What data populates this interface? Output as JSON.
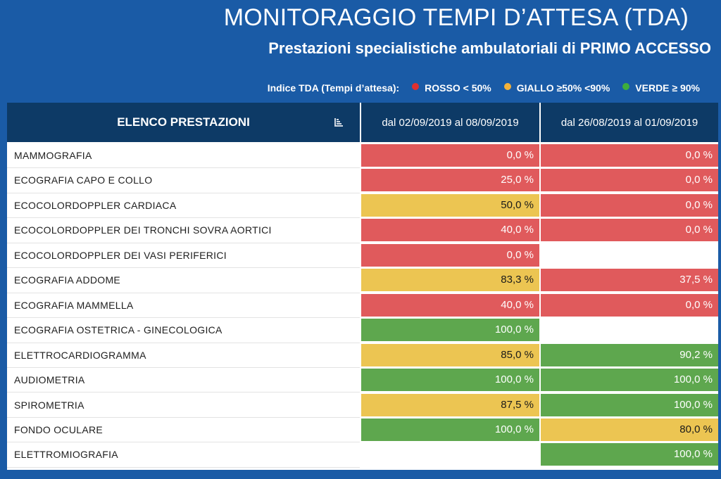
{
  "header": {
    "title": "MONITORAGGIO TEMPI D’ATTESA  (TDA)",
    "subtitle": "Prestazioni specialistiche ambulatoriali di PRIMO ACCESSO"
  },
  "legend": {
    "label": "Indice TDA (Tempi d’attesa):",
    "items": [
      {
        "text": "ROSSO < 50%",
        "color": "#e0302f"
      },
      {
        "text": "GIALLO ≥50%  <90%",
        "color": "#f3b23a"
      },
      {
        "text": "VERDE ≥ 90%",
        "color": "#3eae3c"
      }
    ]
  },
  "table": {
    "col_name": "ELENCO PRESTAZIONI",
    "col_1": "dal 02/09/2019 al 08/09/2019",
    "col_2": "dal 26/08/2019 al 01/09/2019",
    "sort_icon": "sort-icon",
    "colors": {
      "red": "#e05a5c",
      "yellow": "#ecc552",
      "green": "#5ea74e"
    },
    "rows": [
      {
        "name": "MAMMOGRAFIA",
        "v1": "0,0 %",
        "s1": "red",
        "v2": "0,0 %",
        "s2": "red"
      },
      {
        "name": "ECOGRAFIA CAPO E COLLO",
        "v1": "25,0 %",
        "s1": "red",
        "v2": "0,0 %",
        "s2": "red"
      },
      {
        "name": "ECOCOLORDOPPLER CARDIACA",
        "v1": "50,0 %",
        "s1": "yellow",
        "v2": "0,0 %",
        "s2": "red"
      },
      {
        "name": "ECOCOLORDOPPLER DEI TRONCHI SOVRA AORTICI",
        "v1": "40,0 %",
        "s1": "red",
        "v2": "0,0 %",
        "s2": "red"
      },
      {
        "name": "ECOCOLORDOPPLER DEI VASI PERIFERICI",
        "v1": "0,0 %",
        "s1": "red",
        "v2": "",
        "s2": "empty"
      },
      {
        "name": "ECOGRAFIA ADDOME",
        "v1": "83,3 %",
        "s1": "yellow",
        "v2": "37,5 %",
        "s2": "red"
      },
      {
        "name": "ECOGRAFIA MAMMELLA",
        "v1": "40,0 %",
        "s1": "red",
        "v2": "0,0 %",
        "s2": "red"
      },
      {
        "name": "ECOGRAFIA OSTETRICA - GINECOLOGICA",
        "v1": "100,0 %",
        "s1": "green",
        "v2": "",
        "s2": "empty"
      },
      {
        "name": "ELETTROCARDIOGRAMMA",
        "v1": "85,0 %",
        "s1": "yellow",
        "v2": "90,2 %",
        "s2": "green"
      },
      {
        "name": "AUDIOMETRIA",
        "v1": "100,0 %",
        "s1": "green",
        "v2": "100,0 %",
        "s2": "green"
      },
      {
        "name": "SPIROMETRIA",
        "v1": "87,5 %",
        "s1": "yellow",
        "v2": "100,0 %",
        "s2": "green"
      },
      {
        "name": "FONDO OCULARE",
        "v1": "100,0 %",
        "s1": "green",
        "v2": "80,0 %",
        "s2": "yellow"
      },
      {
        "name": "ELETTROMIOGRAFIA",
        "v1": "",
        "s1": "empty",
        "v2": "100,0 %",
        "s2": "green"
      }
    ]
  }
}
